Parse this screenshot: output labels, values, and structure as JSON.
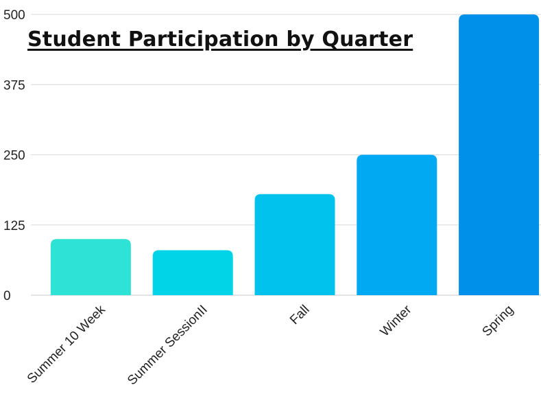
{
  "chart_data": {
    "type": "bar",
    "title": "Student Participation by Quarter",
    "categories": [
      "Summer 10 Week",
      "Summer SessionII",
      "Fall",
      "Winter",
      "Spring"
    ],
    "values": [
      100,
      80,
      180,
      250,
      500
    ],
    "colors": [
      "#2ee3d5",
      "#00d4e6",
      "#00c2ec",
      "#00a9f1",
      "#0090ea"
    ],
    "yticks": [
      0,
      125,
      250,
      375,
      500
    ],
    "ylim": [
      0,
      500
    ],
    "grid": true,
    "xlabel": "",
    "ylabel": ""
  }
}
